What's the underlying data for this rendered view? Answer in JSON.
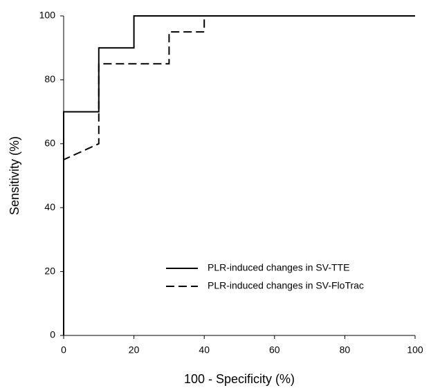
{
  "chart_data": {
    "type": "line",
    "xlabel": "100 - Specificity (%)",
    "ylabel": "Sensitivity (%)",
    "xlim": [
      0,
      100
    ],
    "ylim": [
      0,
      100
    ],
    "xticks": [
      0,
      20,
      40,
      60,
      80,
      100
    ],
    "yticks": [
      0,
      20,
      40,
      60,
      80,
      100
    ],
    "legend": "lower right",
    "series": [
      {
        "name": "PLR-induced changes in SV-TTE",
        "color": "#000000",
        "dash": "solid",
        "x": [
          0,
          0,
          10,
          10,
          20,
          20,
          100
        ],
        "values": [
          0,
          70,
          70,
          90,
          90,
          100,
          100
        ]
      },
      {
        "name": "PLR-induced changes in SV-FloTrac",
        "color": "#000000",
        "dash": "dashed",
        "x": [
          0,
          0,
          10,
          10,
          30,
          30,
          40,
          40,
          100
        ],
        "values": [
          0,
          55,
          60,
          85,
          85,
          95,
          95,
          100,
          100
        ]
      }
    ]
  }
}
